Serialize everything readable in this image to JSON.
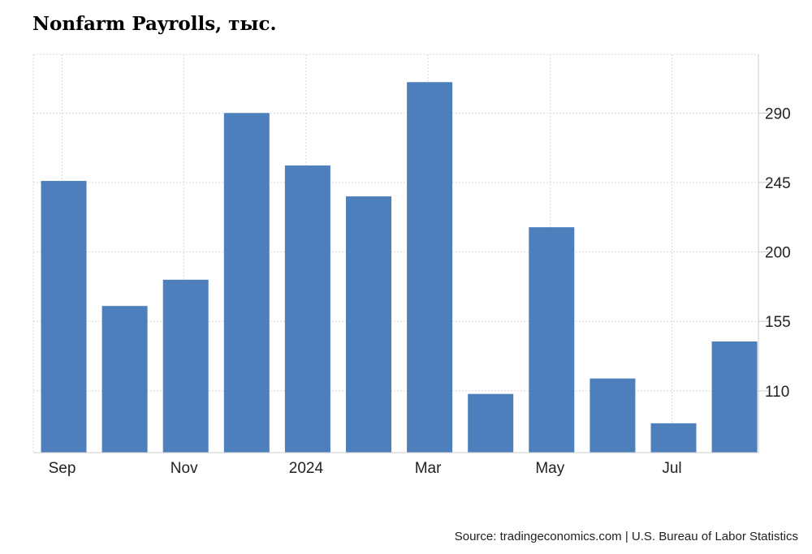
{
  "title": "Nonfarm Payrolls, тыс.",
  "source": "Source: tradingeconomics.com | U.S. Bureau of Labor Statistics",
  "colors": {
    "bar": "#4d7fbc",
    "grid": "#d9d9d9",
    "axis": "#cccccc"
  },
  "chart_data": {
    "type": "bar",
    "months": [
      "2023-09",
      "2023-10",
      "2023-11",
      "2023-12",
      "2024-01",
      "2024-02",
      "2024-03",
      "2024-04",
      "2024-05",
      "2024-06",
      "2024-07",
      "2024-08"
    ],
    "values": [
      246,
      165,
      182,
      290,
      256,
      236,
      310,
      108,
      216,
      118,
      89,
      142
    ],
    "x_tick_labels": [
      {
        "month": "2023-09",
        "label": "Sep"
      },
      {
        "month": "2023-11",
        "label": "Nov"
      },
      {
        "month": "2024-01",
        "label": "2024"
      },
      {
        "month": "2024-03",
        "label": "Mar"
      },
      {
        "month": "2024-05",
        "label": "May"
      },
      {
        "month": "2024-07",
        "label": "Jul"
      }
    ],
    "y_ticks": [
      110,
      155,
      200,
      245,
      290
    ],
    "ylim": [
      70,
      328
    ],
    "y_axis_side": "right",
    "grid": true
  }
}
